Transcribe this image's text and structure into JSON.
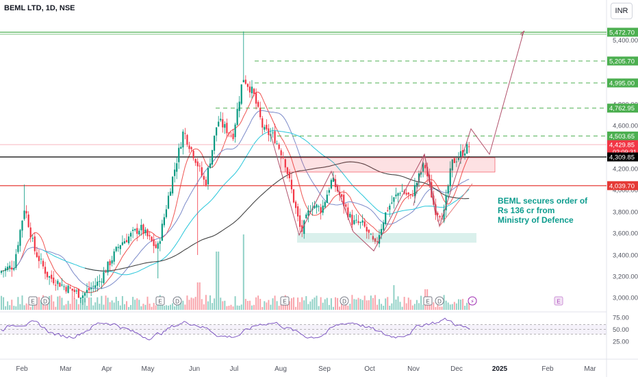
{
  "header": {
    "ticker": "BEML LTD, 1D, NSE",
    "currency": "INR"
  },
  "annotation": "BEML secures order of\nRs 136 cr from\nMinistry of Defence",
  "colors": {
    "up": "#089981",
    "down": "#f23645",
    "green_line": "#4caf50",
    "black_line": "#000000",
    "red_line": "#e53935",
    "rsi": "#7e57c2"
  },
  "chart_data": {
    "type": "candlestick",
    "title": "BEML LTD, 1D, NSE",
    "yaxis": {
      "ticks": [
        "5,400.00",
        "4,800.00",
        "4,600.00",
        "4,400.00",
        "4,200.00",
        "4,000.00",
        "3,800.00",
        "3,600.00",
        "3,400.00",
        "3,200.00",
        "3,000.00"
      ]
    },
    "xaxis": {
      "ticks": [
        "Feb",
        "Mar",
        "Apr",
        "May",
        "Jun",
        "Jul",
        "Aug",
        "Sep",
        "Oct",
        "Nov",
        "Dec",
        "2025",
        "Feb",
        "Mar"
      ]
    },
    "price_labels": [
      {
        "value": 5472.7,
        "label": "5,472.70",
        "color": "#4caf50",
        "style": "solid"
      },
      {
        "value": 5205.7,
        "label": "5,205.70",
        "color": "#4caf50",
        "style": "dashed"
      },
      {
        "value": 4995.0,
        "label": "4,995.00",
        "color": "#4caf50",
        "style": "dashed"
      },
      {
        "value": 4762.95,
        "label": "4,762.95",
        "color": "#4caf50",
        "style": "dashed"
      },
      {
        "value": 4503.65,
        "label": "4,503.65",
        "color": "#4caf50",
        "style": "dashed"
      },
      {
        "value": 4429.85,
        "label": "4,429.85",
        "sublabel": "02:09:31",
        "color": "#f23645",
        "style": "dotted"
      },
      {
        "value": 4309.85,
        "label": "4,309.85",
        "color": "#000000",
        "style": "solid"
      },
      {
        "value": 4039.7,
        "label": "4,039.70",
        "color": "#e53935",
        "style": "solid"
      }
    ],
    "rsi": {
      "ticks": [
        "75.00",
        "50.00",
        "25.00"
      ],
      "band": [
        40,
        60
      ]
    },
    "event_markers": [
      "E",
      "D",
      "E",
      "E",
      "D",
      "E",
      "⚡",
      "E"
    ]
  }
}
